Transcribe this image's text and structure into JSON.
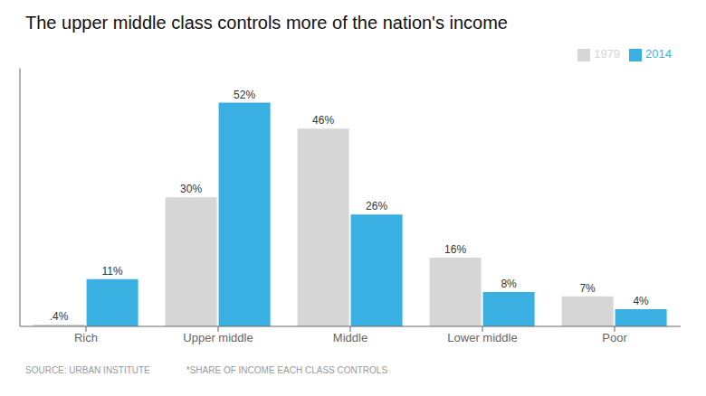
{
  "chart_data": {
    "type": "bar",
    "title": "The upper middle class controls more of the nation's income",
    "categories": [
      "Rich",
      "Upper middle",
      "Middle",
      "Lower middle",
      "Poor"
    ],
    "series": [
      {
        "name": "1979",
        "color": "#d6d6d6",
        "values": [
          0.4,
          30,
          46,
          16,
          7
        ],
        "value_labels": [
          ".4%",
          "30%",
          "46%",
          "16%",
          "7%"
        ]
      },
      {
        "name": "2014",
        "color": "#3ab0e2",
        "values": [
          11,
          52,
          26,
          8,
          4
        ],
        "value_labels": [
          "11%",
          "52%",
          "26%",
          "8%",
          "4%"
        ]
      }
    ],
    "ylim": [
      0,
      60
    ],
    "tick_labels": "x",
    "grid": false,
    "legend": "upper right",
    "data_labels": true,
    "annotations": [
      "SOURCE: URBAN INSTITUTE",
      "*SHARE OF INCOME EACH CLASS CONTROLS"
    ]
  }
}
